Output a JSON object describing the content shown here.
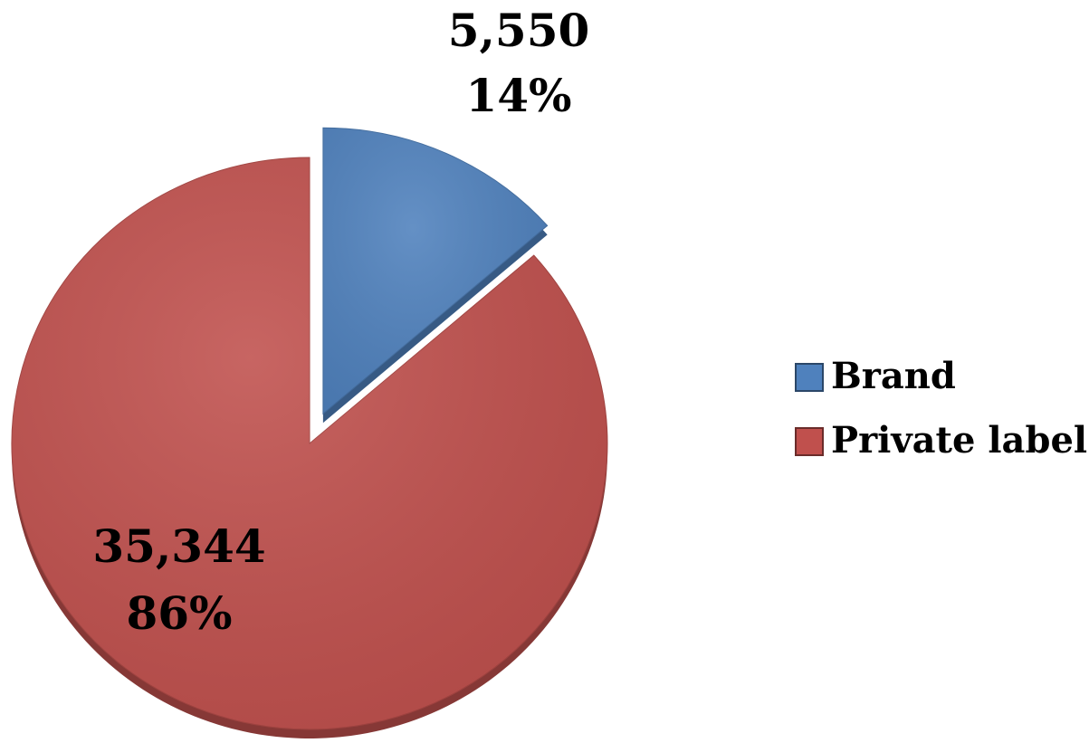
{
  "chart_data": {
    "type": "pie",
    "categories": [
      "Brand",
      "Private label"
    ],
    "values": [
      5550,
      35344
    ],
    "value_labels": [
      "5,550",
      "35,344"
    ],
    "percentages": [
      14,
      86
    ],
    "percentage_labels": [
      "14%",
      "86%"
    ],
    "colors": [
      "#4f81bd",
      "#c0504d"
    ],
    "exploded": [
      true,
      false
    ],
    "legend": "right"
  }
}
